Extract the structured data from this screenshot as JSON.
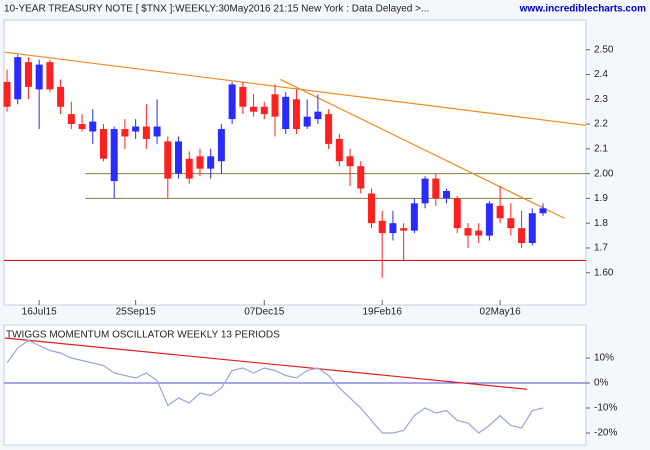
{
  "chart_data": [
    {
      "type": "candlestick",
      "title": "10-YEAR TREASURY NOTE [ $TNX ]:WEEKLY:30May2016 21:15 New York : Data Delayed >...",
      "source": "www.incrediblecharts.com",
      "categories": [
        null,
        null,
        null,
        "16Jul15",
        null,
        null,
        null,
        null,
        null,
        null,
        null,
        null,
        "25Sep15",
        null,
        null,
        null,
        null,
        null,
        null,
        null,
        null,
        null,
        null,
        null,
        "07Dec15",
        null,
        null,
        null,
        null,
        null,
        null,
        null,
        null,
        null,
        null,
        "19Feb16",
        null,
        null,
        null,
        null,
        null,
        null,
        null,
        null,
        null,
        null,
        "02May16",
        null,
        null,
        null,
        null
      ],
      "open": [
        2.37,
        2.3,
        2.45,
        2.34,
        2.45,
        2.35,
        2.24,
        2.2,
        2.17,
        2.18,
        1.97,
        2.18,
        2.17,
        2.19,
        2.15,
        2.13,
        2.0,
        2.06,
        2.07,
        2.02,
        2.05,
        2.22,
        2.35,
        2.27,
        2.27,
        2.32,
        2.18,
        2.3,
        2.19,
        2.22,
        2.24,
        2.14,
        2.07,
        2.03,
        1.92,
        1.81,
        1.76,
        1.78,
        1.77,
        1.88,
        1.98,
        1.9,
        1.9,
        1.78,
        1.77,
        1.75,
        1.87,
        1.82,
        1.78,
        1.72,
        1.84
      ],
      "high": [
        2.42,
        2.48,
        2.47,
        2.46,
        2.46,
        2.38,
        2.29,
        2.24,
        2.26,
        2.2,
        2.19,
        2.22,
        2.22,
        2.28,
        2.3,
        2.15,
        2.15,
        2.09,
        2.1,
        2.1,
        2.2,
        2.37,
        2.37,
        2.32,
        2.29,
        2.36,
        2.33,
        2.34,
        2.3,
        2.32,
        2.26,
        2.16,
        2.1,
        2.05,
        1.94,
        1.85,
        1.85,
        1.8,
        1.9,
        1.99,
        2.0,
        1.94,
        1.91,
        1.8,
        1.8,
        1.89,
        1.95,
        1.88,
        1.85,
        1.86,
        1.88
      ],
      "low": [
        2.25,
        2.28,
        2.3,
        2.18,
        2.33,
        2.24,
        2.18,
        2.17,
        2.12,
        2.05,
        1.9,
        2.1,
        2.14,
        2.1,
        2.12,
        1.9,
        1.98,
        1.96,
        1.99,
        1.98,
        2.0,
        2.2,
        2.24,
        2.23,
        2.22,
        2.15,
        2.16,
        2.16,
        2.18,
        2.2,
        2.1,
        2.03,
        1.95,
        1.92,
        1.78,
        1.58,
        1.73,
        1.65,
        1.76,
        1.86,
        1.87,
        1.88,
        1.76,
        1.7,
        1.72,
        1.73,
        1.8,
        1.75,
        1.7,
        1.71,
        1.83
      ],
      "close": [
        2.27,
        2.47,
        2.35,
        2.44,
        2.34,
        2.27,
        2.2,
        2.18,
        2.21,
        2.06,
        2.18,
        2.15,
        2.19,
        2.14,
        2.19,
        1.98,
        2.13,
        1.98,
        2.02,
        2.07,
        2.18,
        2.36,
        2.27,
        2.25,
        2.24,
        2.23,
        2.31,
        2.18,
        2.23,
        2.25,
        2.12,
        2.05,
        2.03,
        1.94,
        1.8,
        1.76,
        1.8,
        1.77,
        1.88,
        1.98,
        1.9,
        1.93,
        1.78,
        1.75,
        1.75,
        1.88,
        1.82,
        1.78,
        1.72,
        1.84,
        1.86
      ],
      "up_color": "#2b2bff",
      "down_color": "#ff2020",
      "ylim": [
        1.49,
        2.62
      ],
      "yticks": [
        {
          "value": 1.6,
          "label": "1.60"
        },
        1.7,
        1.8,
        1.9,
        {
          "value": 2.0,
          "label": "2.00"
        },
        2.1,
        2.2,
        2.3,
        2.4,
        {
          "value": 2.5,
          "label": "2.50"
        }
      ],
      "hlines": [
        {
          "value": 1.65,
          "color": "#cc0000"
        },
        {
          "value": 2.0,
          "color": "#808040",
          "from": 7.3
        },
        {
          "value": 1.9,
          "color": "#808040",
          "from": 7.3,
          "to": 49
        }
      ],
      "trendlines": [
        {
          "x": [
            -0.2,
            54
          ],
          "y": [
            2.49,
            2.195
          ],
          "color": "#f08a20"
        },
        {
          "x": [
            25.5,
            52
          ],
          "y": [
            2.38,
            1.82
          ],
          "color": "#f08a20"
        }
      ]
    },
    {
      "type": "line",
      "title": "TWIGGS MOMENTUM OSCILLATOR WEEKLY 13 PERIODS",
      "values": [
        8,
        14,
        17,
        15,
        13,
        12,
        10,
        9,
        8,
        7,
        4,
        3,
        2,
        4,
        1,
        -9,
        -6,
        -8,
        -4,
        -5,
        -2,
        5,
        6,
        4,
        6,
        5,
        3,
        2,
        5,
        6,
        3,
        -2,
        -6,
        -10,
        -15,
        -20,
        -20,
        -19,
        -13,
        -10,
        -12,
        -11,
        -15,
        -16,
        -20,
        -17,
        -13,
        -17,
        -18,
        -11,
        -10
      ],
      "color": "#9aa6d8",
      "ylim": [
        -24.8,
        23.2
      ],
      "yticks": [
        {
          "value": -20,
          "label": "-20%"
        },
        {
          "value": -10,
          "label": "-10%"
        },
        {
          "value": 0,
          "label": "0%"
        },
        {
          "value": 10,
          "label": "10%"
        }
      ],
      "hlines": [
        {
          "value": 0,
          "color": "#5050d0"
        }
      ],
      "trendlines": [
        {
          "x": [
            -0.2,
            48.5
          ],
          "y": [
            18,
            -2.5
          ],
          "color": "#e02020"
        }
      ]
    }
  ]
}
